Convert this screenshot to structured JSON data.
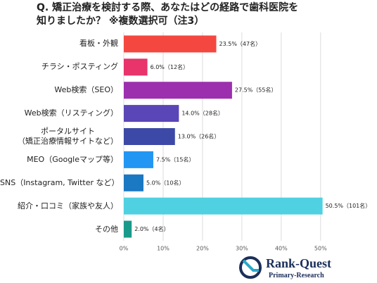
{
  "chart_data": {
    "type": "bar",
    "orientation": "horizontal",
    "title": [
      "Q. 矯正治療を検討する際、あなたはどの経路で歯科医院を",
      "知りましたか？ ※複数選択可（注3）"
    ],
    "categories": [
      "看板・外観",
      "チラシ・ポスティング",
      "Web検索（SEO）",
      "Web検索（リスティング）",
      "ポータルサイト\n（矯正治療情報サイトなど）",
      "MEO（Googleマップ等）",
      "SNS（Instagram, Twitter など）",
      "紹介・口コミ（家族や友人）",
      "その他"
    ],
    "values": [
      23.5,
      6.0,
      27.5,
      14.0,
      13.0,
      7.5,
      5.0,
      50.5,
      2.0
    ],
    "value_labels": [
      "23.5%（47名）",
      "6.0%（12名）",
      "27.5%（55名）",
      "14.0%（28名）",
      "13.0%（26名）",
      "7.5%（15名）",
      "5.0%（10名）",
      "50.5%（101名）",
      "2.0%（4名）"
    ],
    "colors": [
      "#f4473f",
      "#e8336b",
      "#9c2fae",
      "#5a46b6",
      "#3d49a6",
      "#2196f3",
      "#1b78c2",
      "#4fd1e2",
      "#1a9a8a"
    ],
    "xlim": [
      0,
      52
    ],
    "xticks": [
      {
        "value": 0,
        "label": "0%"
      },
      {
        "value": 10,
        "label": "10%"
      },
      {
        "value": 20,
        "label": "20%"
      },
      {
        "value": 30,
        "label": "30%"
      },
      {
        "value": 40,
        "label": "40%"
      },
      {
        "value": 50,
        "label": "50%"
      }
    ],
    "grid": true
  },
  "logo": {
    "name": "Rank-Quest",
    "tagline": "Primary-Research"
  }
}
